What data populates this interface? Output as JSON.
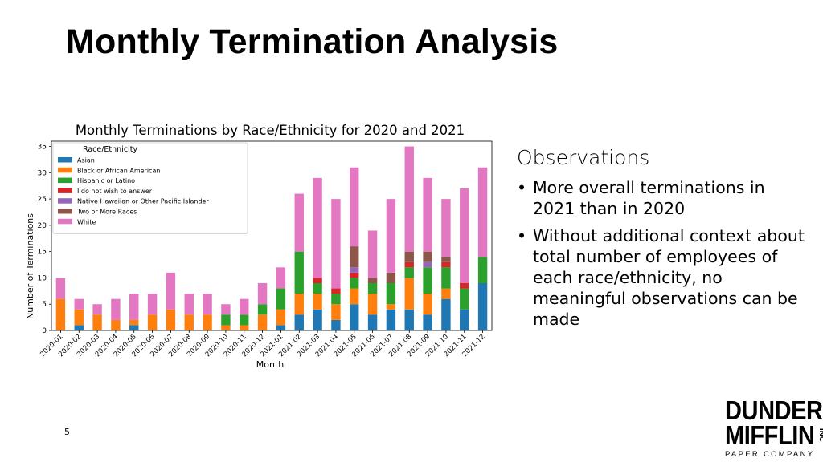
{
  "slide": {
    "title": "Monthly Termination Analysis",
    "page_number": "5"
  },
  "observations": {
    "heading": "Observations",
    "bullets": [
      "More overall terminations in 2021 than in 2020",
      "Without additional context about total number of employees of each race/ethnicity, no meaningful observations can be made"
    ]
  },
  "logo": {
    "line1": "DUNDER",
    "line2": "MIFFLIN",
    "suffix": "INC",
    "line3": "PAPER COMPANY"
  },
  "chart_data": {
    "type": "bar",
    "stacked": true,
    "title": "Monthly Terminations by Race/Ethnicity for 2020 and 2021",
    "xlabel": "Month",
    "ylabel": "Number of Terminations",
    "ylim": [
      0,
      36
    ],
    "yticks": [
      0,
      5,
      10,
      15,
      20,
      25,
      30,
      35
    ],
    "grid": false,
    "legend": {
      "title": "Race/Ethnicity",
      "placement": "top-left"
    },
    "categories": [
      "2020-01",
      "2020-02",
      "2020-03",
      "2020-04",
      "2020-05",
      "2020-06",
      "2020-07",
      "2020-08",
      "2020-09",
      "2020-10",
      "2020-11",
      "2020-12",
      "2021-01",
      "2021-02",
      "2021-03",
      "2021-04",
      "2021-05",
      "2021-06",
      "2021-07",
      "2021-08",
      "2021-09",
      "2021-10",
      "2021-11",
      "2021-12"
    ],
    "series": [
      {
        "name": "Asian",
        "color": "#1f77b4",
        "values": [
          0,
          1,
          0,
          0,
          1,
          0,
          0,
          0,
          0,
          0,
          0,
          0,
          1,
          3,
          4,
          2,
          5,
          3,
          4,
          4,
          3,
          6,
          4,
          9
        ]
      },
      {
        "name": "Black or African American",
        "color": "#ff7f0e",
        "values": [
          6,
          3,
          3,
          2,
          1,
          3,
          4,
          3,
          3,
          1,
          1,
          3,
          3,
          4,
          3,
          3,
          3,
          4,
          1,
          6,
          4,
          2,
          0,
          0
        ]
      },
      {
        "name": "Hispanic or Latino",
        "color": "#2ca02c",
        "values": [
          0,
          0,
          0,
          0,
          0,
          0,
          0,
          0,
          0,
          2,
          2,
          2,
          4,
          8,
          2,
          2,
          2,
          2,
          4,
          2,
          5,
          4,
          4,
          5
        ]
      },
      {
        "name": "I do not wish to answer",
        "color": "#d62728",
        "values": [
          0,
          0,
          0,
          0,
          0,
          0,
          0,
          0,
          0,
          0,
          0,
          0,
          0,
          0,
          1,
          1,
          1,
          0,
          0,
          1,
          0,
          1,
          1,
          0
        ]
      },
      {
        "name": "Native Hawaiian or Other Pacific Islander",
        "color": "#9467bd",
        "values": [
          0,
          0,
          0,
          0,
          0,
          0,
          0,
          0,
          0,
          0,
          0,
          0,
          0,
          0,
          0,
          0,
          1,
          0,
          0,
          0,
          1,
          0,
          0,
          0
        ]
      },
      {
        "name": "Two or More Races",
        "color": "#8c564b",
        "values": [
          0,
          0,
          0,
          0,
          0,
          0,
          0,
          0,
          0,
          0,
          0,
          0,
          0,
          0,
          0,
          0,
          4,
          1,
          2,
          2,
          2,
          1,
          0,
          0
        ]
      },
      {
        "name": "White",
        "color": "#e377c2",
        "values": [
          4,
          2,
          2,
          4,
          5,
          4,
          7,
          4,
          4,
          2,
          3,
          4,
          4,
          11,
          19,
          17,
          15,
          9,
          14,
          20,
          14,
          11,
          18,
          17
        ]
      }
    ]
  }
}
